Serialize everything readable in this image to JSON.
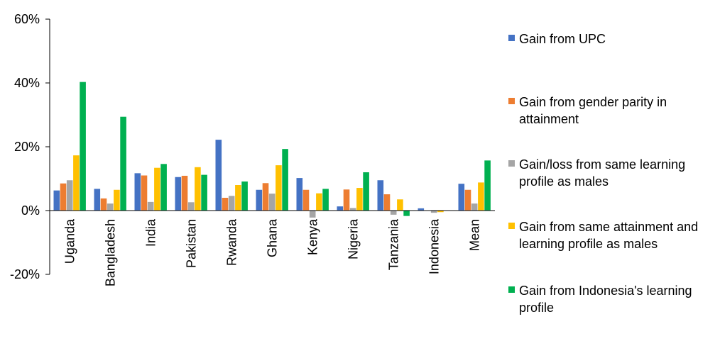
{
  "chart_data": {
    "type": "bar",
    "title": "",
    "xlabel": "",
    "ylabel": "",
    "ylim": [
      -0.2,
      0.6
    ],
    "yticks": [
      -0.2,
      0,
      0.2,
      0.4,
      0.6
    ],
    "ytick_labels": [
      "-20%",
      "0%",
      "20%",
      "40%",
      "60%"
    ],
    "legend_position": "right",
    "grid": false,
    "categories": [
      "Uganda",
      "Bangladesh",
      "India",
      "Pakistan",
      "Rwanda",
      "Ghana",
      "Kenya",
      "Nigeria",
      "Tanzania",
      "Indonesia",
      "Mean"
    ],
    "series": [
      {
        "name": "Gain from UPC",
        "color": "#4472C4",
        "values": [
          0.063,
          0.068,
          0.117,
          0.105,
          0.222,
          0.065,
          0.102,
          0.013,
          0.095,
          0.007,
          0.084
        ]
      },
      {
        "name": "Gain from gender parity in attainment",
        "color": "#ED7D31",
        "values": [
          0.085,
          0.038,
          0.11,
          0.109,
          0.04,
          0.086,
          0.065,
          0.066,
          0.051,
          0.0,
          0.065
        ]
      },
      {
        "name": "Gain/loss from same learning profile as males",
        "color": "#A5A5A5",
        "values": [
          0.095,
          0.022,
          0.027,
          0.026,
          0.046,
          0.053,
          -0.022,
          0.008,
          -0.013,
          -0.007,
          0.022
        ]
      },
      {
        "name": "Gain from same attainment and learning profile as males",
        "color": "#FFC000",
        "values": [
          0.173,
          0.065,
          0.134,
          0.136,
          0.08,
          0.142,
          0.054,
          0.071,
          0.035,
          -0.005,
          0.088
        ]
      },
      {
        "name": "Gain from Indonesia's learning profile",
        "color": "#00B050",
        "values": [
          0.403,
          0.294,
          0.146,
          0.112,
          0.091,
          0.193,
          0.068,
          0.12,
          -0.017,
          0.0,
          0.157
        ]
      }
    ]
  }
}
